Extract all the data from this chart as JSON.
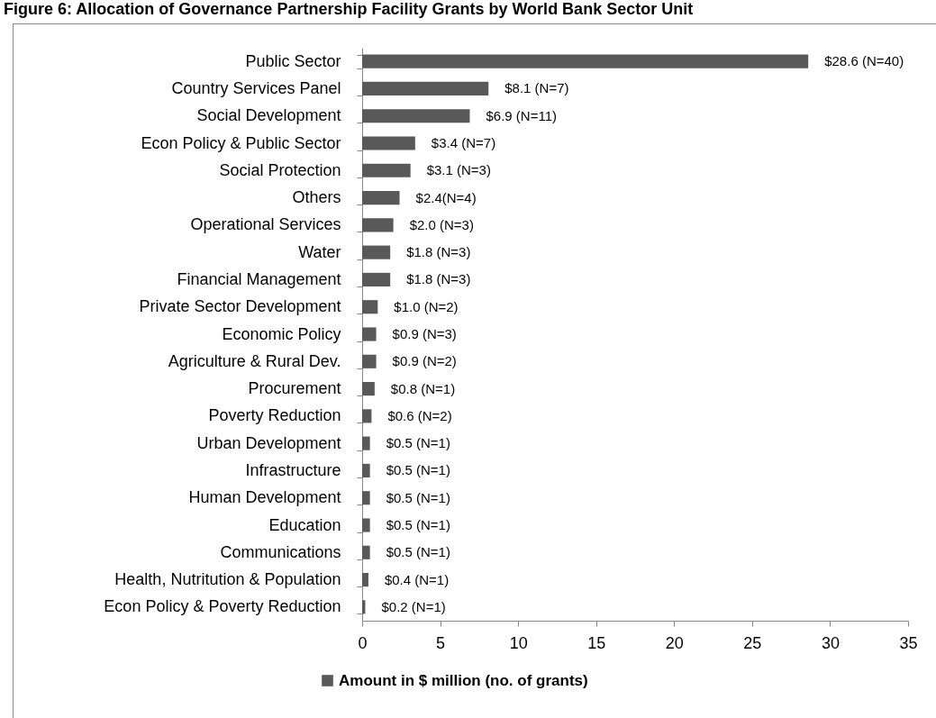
{
  "chart_data": {
    "type": "bar",
    "orientation": "horizontal",
    "title": "Figure 6: Allocation of Governance Partnership Facility Grants by World Bank Sector Unit",
    "categories": [
      "Public Sector",
      "Country Services Panel",
      "Social Development",
      "Econ Policy & Public Sector",
      "Social Protection",
      "Others",
      "Operational Services",
      "Water",
      "Financial Management",
      "Private Sector Development",
      "Economic Policy",
      "Agriculture & Rural Dev.",
      "Procurement",
      "Poverty Reduction",
      "Urban Development",
      "Infrastructure",
      "Human Development",
      "Education",
      "Communications",
      "Health, Nutritution & Population",
      "Econ Policy & Poverty Reduction"
    ],
    "series": [
      {
        "name": "Amount in $ million (no. of grants)",
        "color": "#595959",
        "values": [
          28.6,
          8.1,
          6.9,
          3.4,
          3.1,
          2.4,
          2.0,
          1.8,
          1.8,
          1.0,
          0.9,
          0.9,
          0.8,
          0.6,
          0.5,
          0.5,
          0.5,
          0.5,
          0.5,
          0.4,
          0.2
        ],
        "value_labels": [
          "$28.6 (N=40)",
          "$8.1 (N=7)",
          "$6.9 (N=11)",
          "$3.4 (N=7)",
          "$3.1 (N=3)",
          "$2.4(N=4)",
          "$2.0 (N=3)",
          "$1.8 (N=3)",
          "$1.8 (N=3)",
          "$1.0 (N=2)",
          "$0.9 (N=3)",
          "$0.9 (N=2)",
          "$0.8 (N=1)",
          "$0.6 (N=2)",
          "$0.5 (N=1)",
          "$0.5 (N=1)",
          "$0.5 (N=1)",
          "$0.5 (N=1)",
          "$0.5 (N=1)",
          "$0.4 (N=1)",
          "$0.2 (N=1)"
        ]
      }
    ],
    "xlim": [
      0,
      35
    ],
    "xticks": [
      0,
      5,
      10,
      15,
      20,
      25,
      30,
      35
    ],
    "legend": "bottom"
  }
}
